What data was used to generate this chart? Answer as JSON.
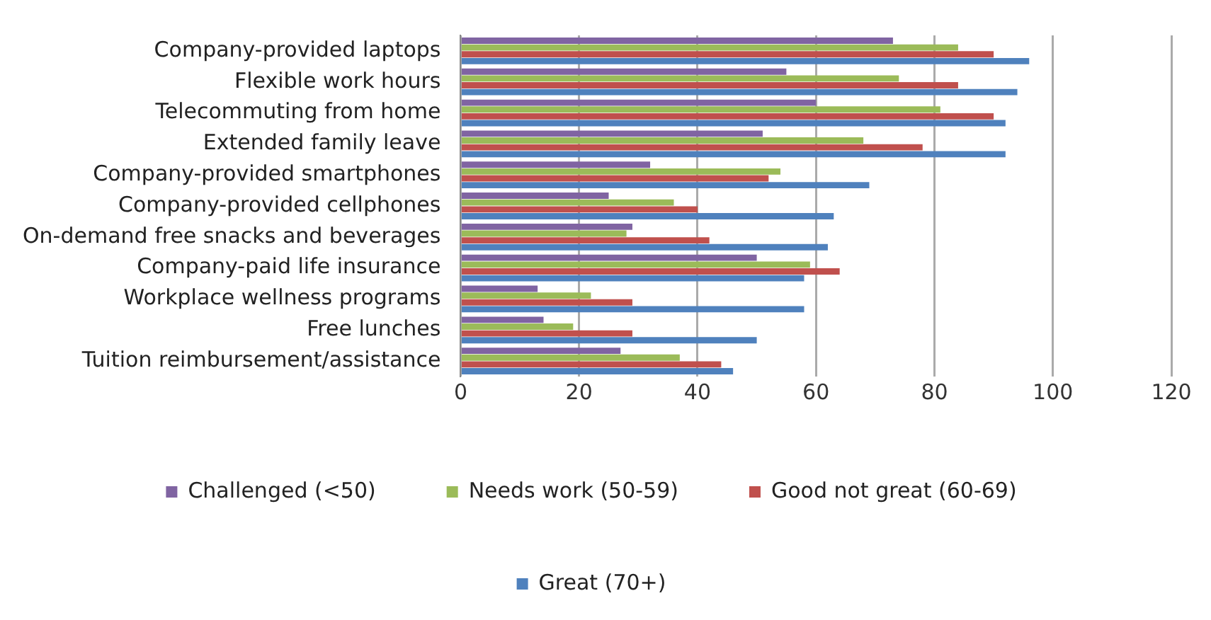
{
  "chart_data": {
    "type": "bar",
    "orientation": "horizontal",
    "categories": [
      "Company-provided laptops",
      "Flexible work hours",
      "Telecommuting from home",
      "Extended family leave",
      "Company-provided smartphones",
      "Company-provided cellphones",
      "On-demand free snacks and beverages",
      "Company-paid life insurance",
      "Workplace wellness programs",
      "Free lunches",
      "Tuition reimbursement/assistance"
    ],
    "series": [
      {
        "name": "Challenged (<50)",
        "color": "#8064a2",
        "values": [
          73,
          55,
          60,
          51,
          32,
          25,
          29,
          50,
          13,
          14,
          27
        ]
      },
      {
        "name": "Needs work (50-59)",
        "color": "#9bbb59",
        "values": [
          84,
          74,
          81,
          68,
          54,
          36,
          28,
          59,
          22,
          19,
          37
        ]
      },
      {
        "name": "Good not great (60-69)",
        "color": "#c0504d",
        "values": [
          90,
          84,
          90,
          78,
          52,
          40,
          42,
          64,
          29,
          29,
          44
        ]
      },
      {
        "name": "Great (70+)",
        "color": "#4f81bd",
        "values": [
          96,
          94,
          92,
          92,
          69,
          63,
          62,
          58,
          58,
          50,
          46
        ]
      }
    ],
    "xlim": [
      0,
      120
    ],
    "xticks": [
      0,
      20,
      40,
      60,
      80,
      100,
      120
    ],
    "grid": "x",
    "legend": "bottom"
  }
}
